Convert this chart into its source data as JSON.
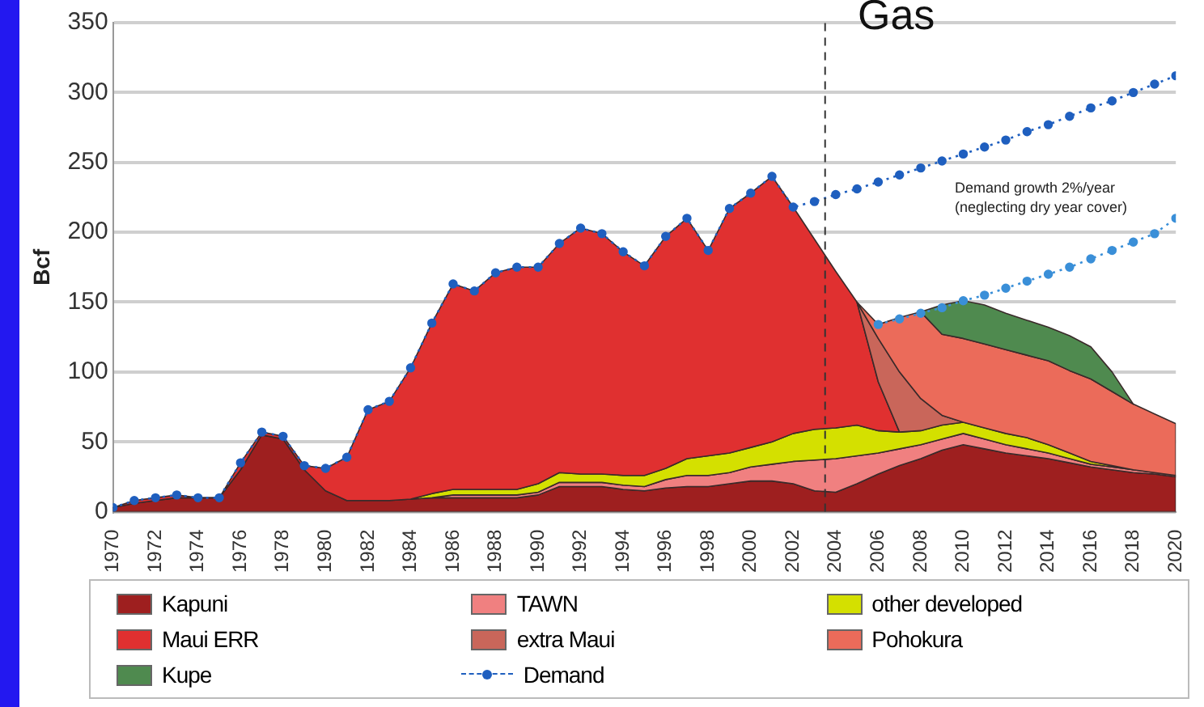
{
  "chart_data": {
    "type": "area",
    "stacked": true,
    "ylabel": "Bcf",
    "x": [
      1970,
      1971,
      1972,
      1973,
      1974,
      1975,
      1976,
      1977,
      1978,
      1979,
      1980,
      1981,
      1982,
      1983,
      1984,
      1985,
      1986,
      1987,
      1988,
      1989,
      1990,
      1991,
      1992,
      1993,
      1994,
      1995,
      1996,
      1997,
      1998,
      1999,
      2000,
      2001,
      2002,
      2003,
      2004,
      2005,
      2006,
      2007,
      2008,
      2009,
      2010,
      2011,
      2012,
      2013,
      2014,
      2015,
      2016,
      2017,
      2018,
      2019,
      2020
    ],
    "xlim": [
      1970,
      2020
    ],
    "xticks": [
      1970,
      1972,
      1974,
      1976,
      1978,
      1980,
      1982,
      1984,
      1986,
      1988,
      1990,
      1992,
      1994,
      1996,
      1998,
      2000,
      2002,
      2004,
      2006,
      2008,
      2010,
      2012,
      2014,
      2016,
      2018,
      2020
    ],
    "ylim": [
      0,
      350
    ],
    "yticks": [
      0,
      50,
      100,
      150,
      200,
      250,
      300,
      350
    ],
    "grid": "y",
    "legend": "bottom",
    "series": [
      {
        "name": "Kapuni",
        "color": "#9e1f1f",
        "values": [
          3,
          6,
          8,
          10,
          10,
          10,
          30,
          55,
          52,
          30,
          15,
          8,
          8,
          8,
          9,
          10,
          10,
          10,
          10,
          10,
          12,
          18,
          18,
          18,
          16,
          15,
          17,
          18,
          18,
          20,
          22,
          22,
          20,
          15,
          14,
          20,
          27,
          33,
          38,
          44,
          48,
          45,
          42,
          40,
          38,
          35,
          32,
          30,
          28,
          27,
          25
        ]
      },
      {
        "name": "TAWN",
        "color": "#f08080",
        "values": [
          null,
          null,
          null,
          null,
          null,
          null,
          null,
          null,
          null,
          null,
          null,
          null,
          null,
          null,
          null,
          0,
          2,
          2,
          2,
          2,
          2,
          3,
          3,
          3,
          3,
          3,
          6,
          8,
          8,
          8,
          10,
          12,
          16,
          22,
          24,
          20,
          15,
          12,
          10,
          8,
          8,
          7,
          6,
          5,
          4,
          3,
          2,
          2,
          2,
          1,
          1
        ]
      },
      {
        "name": "other developed",
        "color": "#d4e000",
        "values": [
          null,
          null,
          null,
          null,
          null,
          null,
          null,
          null,
          null,
          null,
          null,
          null,
          null,
          null,
          0,
          3,
          4,
          4,
          4,
          4,
          6,
          7,
          6,
          6,
          7,
          8,
          8,
          12,
          14,
          14,
          14,
          16,
          20,
          22,
          22,
          22,
          16,
          12,
          10,
          10,
          8,
          8,
          8,
          8,
          6,
          4,
          2,
          1,
          0,
          null,
          null
        ]
      },
      {
        "name": "Maui ERR",
        "color": "#e03030",
        "values": [
          0,
          2,
          2,
          2,
          0,
          0,
          5,
          2,
          2,
          3,
          16,
          31,
          65,
          71,
          94,
          122,
          147,
          142,
          155,
          159,
          155,
          164,
          176,
          172,
          160,
          150,
          166,
          172,
          147,
          175,
          182,
          190,
          162,
          136,
          112,
          88,
          35,
          0,
          null,
          null,
          null,
          null,
          null,
          null,
          null,
          null,
          null,
          null,
          null,
          null,
          null
        ]
      },
      {
        "name": "extra Maui",
        "color": "#c9665a",
        "values": [
          null,
          null,
          null,
          null,
          null,
          null,
          null,
          null,
          null,
          null,
          null,
          null,
          null,
          null,
          null,
          null,
          null,
          null,
          null,
          null,
          null,
          null,
          null,
          null,
          null,
          null,
          null,
          null,
          null,
          null,
          null,
          null,
          null,
          null,
          null,
          0,
          31,
          43,
          23,
          7,
          0,
          null,
          null,
          null,
          null,
          null,
          null,
          null,
          null,
          null,
          null
        ]
      },
      {
        "name": "Pohokura",
        "color": "#eb6b5a",
        "values": [
          null,
          null,
          null,
          null,
          null,
          null,
          null,
          null,
          null,
          null,
          null,
          null,
          null,
          null,
          null,
          null,
          null,
          null,
          null,
          null,
          null,
          null,
          null,
          null,
          null,
          null,
          null,
          null,
          null,
          null,
          null,
          null,
          null,
          null,
          null,
          0,
          10,
          39,
          62,
          58,
          60,
          60,
          60,
          59,
          60,
          59,
          59,
          53,
          47,
          42,
          37
        ]
      },
      {
        "name": "Kupe",
        "color": "#4f8a4f",
        "values": [
          null,
          null,
          null,
          null,
          null,
          null,
          null,
          null,
          null,
          null,
          null,
          null,
          null,
          null,
          null,
          null,
          null,
          null,
          null,
          null,
          null,
          null,
          null,
          null,
          null,
          null,
          null,
          null,
          null,
          null,
          null,
          null,
          null,
          null,
          null,
          null,
          null,
          null,
          0,
          21,
          27,
          28,
          26,
          25,
          24,
          25,
          23,
          14,
          0,
          null,
          null
        ]
      },
      {
        "name": "Demand",
        "type": "line",
        "color": "#1f5fbf",
        "marker": "circle",
        "line_style": "dotted",
        "values": [
          3,
          8,
          10,
          12,
          10,
          10,
          35,
          57,
          54,
          33,
          31,
          39,
          73,
          79,
          103,
          135,
          163,
          158,
          171,
          175,
          175,
          192,
          203,
          199,
          186,
          176,
          197,
          210,
          187,
          217,
          228,
          240,
          218,
          222,
          227,
          231,
          236,
          241,
          246,
          251,
          256,
          261,
          266,
          272,
          277,
          283,
          289,
          294,
          300,
          306,
          312
        ]
      },
      {
        "type": "line",
        "color": "#3a8fd8",
        "marker": "circle",
        "line_style": "dotted",
        "values": [
          null,
          null,
          null,
          null,
          null,
          null,
          null,
          null,
          null,
          null,
          null,
          null,
          null,
          null,
          null,
          null,
          null,
          null,
          null,
          null,
          null,
          null,
          null,
          null,
          null,
          null,
          null,
          null,
          null,
          null,
          null,
          null,
          null,
          null,
          null,
          null,
          134,
          138,
          142,
          146,
          151,
          155,
          160,
          165,
          170,
          175,
          181,
          187,
          193,
          199,
          210
        ]
      }
    ],
    "ref_lines": [
      {
        "axis": "x",
        "value": 2003.5,
        "color": "#333333",
        "line_style": "dashed"
      }
    ],
    "annotations": [
      "Demand growth 2%/year\n(neglecting dry year cover)",
      "Gas"
    ]
  }
}
